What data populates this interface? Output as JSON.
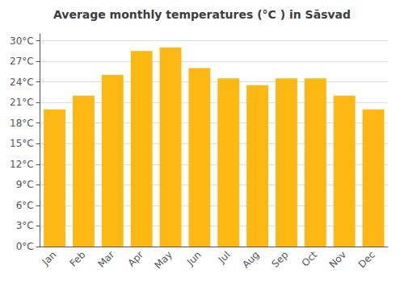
{
  "chart_data": {
    "type": "bar",
    "title": "Average monthly temperatures (°C ) in Sāsvad",
    "categories": [
      "Jan",
      "Feb",
      "Mar",
      "Apr",
      "May",
      "Jun",
      "Jul",
      "Aug",
      "Sep",
      "Oct",
      "Nov",
      "Dec"
    ],
    "values": [
      20.0,
      22.0,
      25.0,
      28.5,
      29.0,
      26.0,
      24.5,
      23.5,
      24.5,
      24.5,
      22.0,
      20.0
    ],
    "color": "#FDB813",
    "ylim": [
      0,
      31
    ],
    "yticks": [
      {
        "value": 0,
        "label": "0°C"
      },
      {
        "value": 3,
        "label": "3°C"
      },
      {
        "value": 6,
        "label": "6°C"
      },
      {
        "value": 9,
        "label": "9°C"
      },
      {
        "value": 12,
        "label": "12°C"
      },
      {
        "value": 15,
        "label": "15°C"
      },
      {
        "value": 18,
        "label": "18°C"
      },
      {
        "value": 21,
        "label": "21°C"
      },
      {
        "value": 24,
        "label": "24°C"
      },
      {
        "value": 27,
        "label": "27°C"
      },
      {
        "value": 30,
        "label": "30°C"
      }
    ],
    "grid": true
  }
}
